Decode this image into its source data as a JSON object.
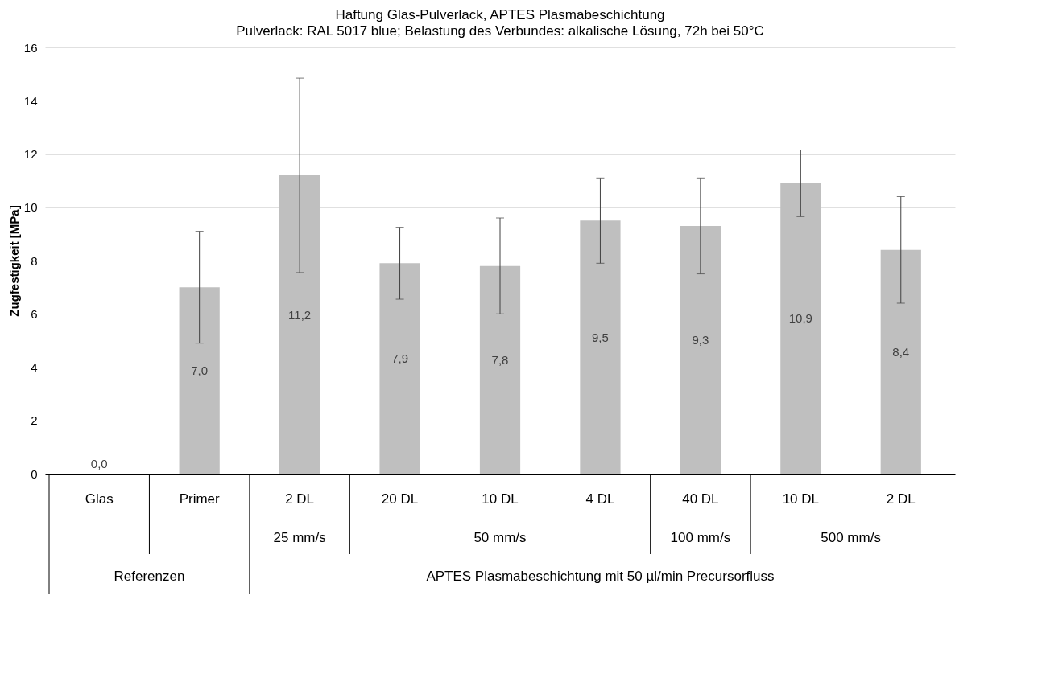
{
  "chart_data": {
    "type": "bar",
    "title": "Haftung Glas-Pulverlack, APTES Plasmabeschichtung",
    "subtitle": "Pulverlack: RAL 5017 blue; Belastung des Verbundes: alkalische Lösung, 72h bei 50°C",
    "ylabel": "Zugfestigkeit [MPa]",
    "categories": [
      "Glas",
      "Primer",
      "2 DL",
      "20 DL",
      "10 DL",
      "4 DL",
      "40 DL",
      "10 DL",
      "2 DL"
    ],
    "values": [
      0.0,
      7.0,
      11.2,
      7.9,
      7.8,
      9.5,
      9.3,
      10.9,
      8.4
    ],
    "errors": [
      null,
      2.1,
      3.65,
      1.35,
      1.8,
      1.6,
      1.8,
      1.25,
      2.0
    ],
    "value_labels": [
      "0,0",
      "7,0",
      "11,2",
      "7,9",
      "7,8",
      "9,5",
      "9,3",
      "10,9",
      "8,4"
    ],
    "color": "#bfbfbf",
    "ylim": [
      0,
      16
    ],
    "yticks": [
      0,
      2,
      4,
      6,
      8,
      10,
      12,
      14,
      16
    ],
    "grid": "y",
    "annotations": [
      "25 mm/s",
      "50 mm/s",
      "100 mm/s",
      "500 mm/s",
      "Referenzen",
      "APTES Plasmabeschichtung mit 50 µl/min Precursorfluss"
    ]
  }
}
